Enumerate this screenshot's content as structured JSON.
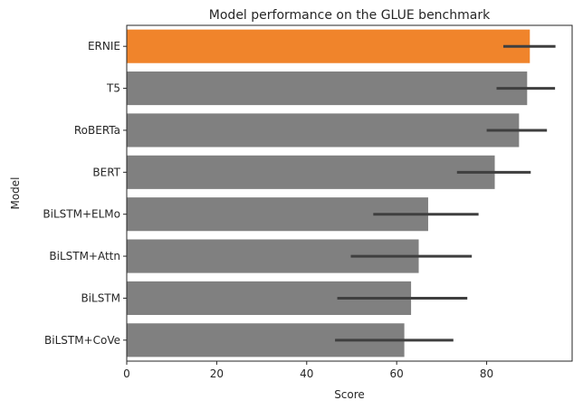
{
  "chart_data": {
    "type": "bar",
    "orientation": "horizontal",
    "title": "Model performance on the GLUE benchmark",
    "xlabel": "Score",
    "ylabel": "Model",
    "xlim": [
      0,
      99
    ],
    "xticks": [
      0,
      20,
      40,
      60,
      80
    ],
    "grid": false,
    "legend": "none",
    "highlight_color": "#f0842b",
    "bar_color": "#808080",
    "errorbar_color": "#3f3f3f",
    "categories": [
      "ERNIE",
      "T5",
      "RoBERTa",
      "BERT",
      "BiLSTM+ELMo",
      "BiLSTM+Attn",
      "BiLSTM",
      "BiLSTM+CoVe"
    ],
    "values": [
      89.6,
      89.0,
      87.2,
      81.8,
      67.0,
      64.9,
      63.2,
      61.7
    ],
    "error_low": [
      83.7,
      82.2,
      80.0,
      73.4,
      54.8,
      49.8,
      46.8,
      46.3
    ],
    "error_high": [
      95.3,
      95.2,
      93.4,
      89.8,
      78.2,
      76.7,
      75.7,
      72.6
    ],
    "highlighted": [
      "ERNIE"
    ]
  }
}
